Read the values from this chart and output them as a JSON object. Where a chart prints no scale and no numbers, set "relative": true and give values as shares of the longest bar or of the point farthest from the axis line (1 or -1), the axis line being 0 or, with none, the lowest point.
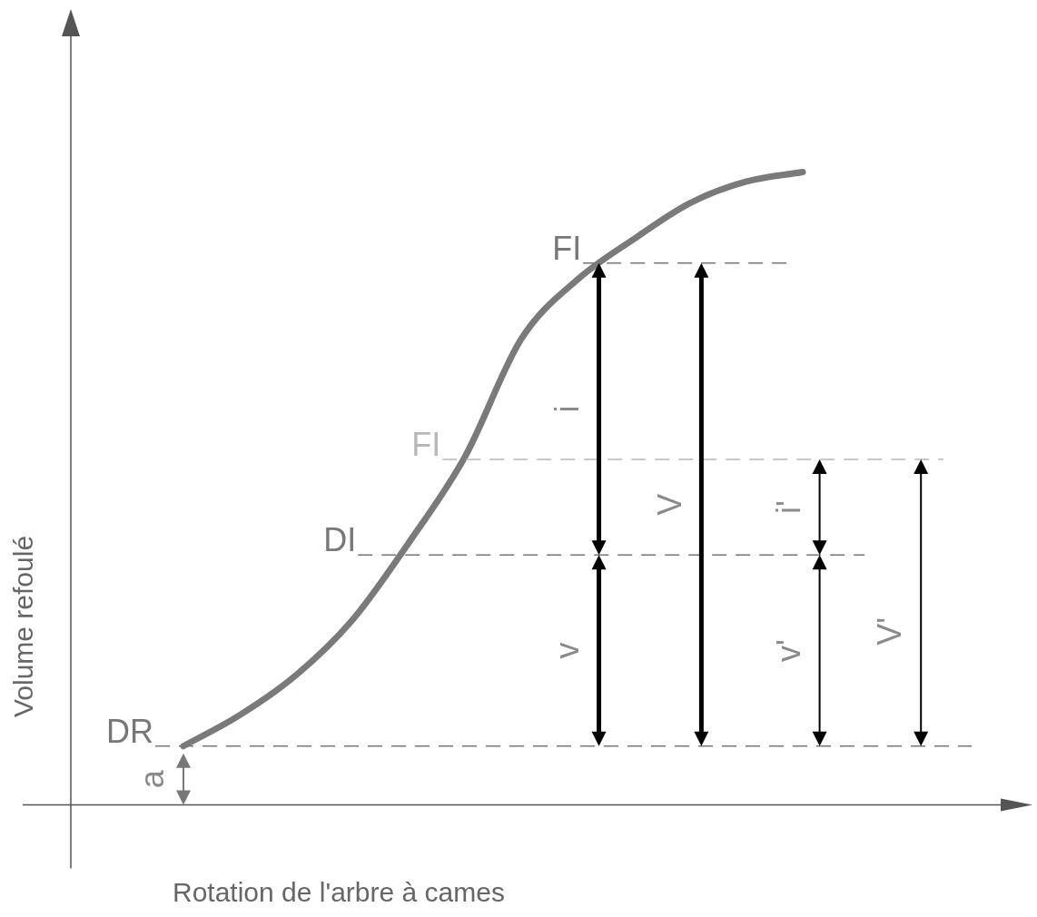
{
  "chart_data": {
    "type": "line",
    "relative": true,
    "xlabel": "Rotation de l'arbre à cames",
    "ylabel": "Volume refoulé",
    "categories": [
      null,
      null,
      null,
      null,
      null,
      null,
      null,
      null,
      null,
      null,
      null,
      null,
      null,
      null,
      null,
      null,
      null,
      null
    ],
    "series": [
      {
        "color": "#7a7a7a",
        "values": [
          null,
          null,
          0.093,
          0.142,
          0.205,
          0.292,
          0.414,
          0.55,
          0.736,
          0.83,
          0.894,
          0.951,
          0.985,
          1,
          null,
          null,
          null,
          null
        ]
      }
    ],
    "ref_lines": [
      {
        "axis": "y",
        "value": 0.093,
        "label": "DR",
        "color": "#777777",
        "line_style": "dashed"
      },
      {
        "axis": "y",
        "value": 0.395,
        "label": "DI",
        "color": "#777777",
        "line_style": "dashed"
      },
      {
        "axis": "y",
        "value": 0.546,
        "label": "FI",
        "color": "#b8b8b8",
        "line_style": "dashed"
      },
      {
        "axis": "y",
        "value": 0.856,
        "label": "FI",
        "color": "#777777",
        "line_style": "dashed"
      }
    ],
    "annotations": [
      "a",
      "i",
      "v",
      "V",
      "i'",
      "v'",
      "V'"
    ],
    "legend": false,
    "grid": false,
    "marker": "none",
    "line_style": "solid"
  }
}
